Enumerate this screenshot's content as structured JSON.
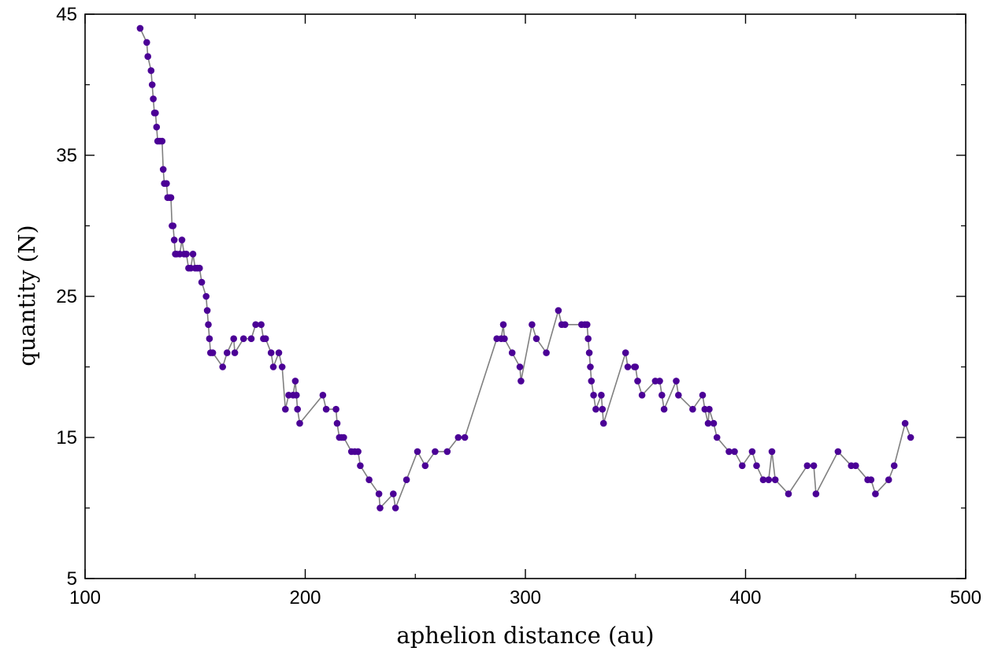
{
  "chart_data": {
    "type": "line",
    "title": "",
    "xlabel": "aphelion distance (au)",
    "ylabel": "quantity (N)",
    "xlim": [
      100,
      500
    ],
    "ylim": [
      5,
      45
    ],
    "xticks": [
      100,
      200,
      300,
      400,
      500
    ],
    "yticks": [
      5,
      15,
      25,
      35,
      45
    ],
    "grid": false,
    "legend": "none",
    "colors": {
      "line": "#808080",
      "marker": "#4b0096"
    },
    "x": [
      125,
      128,
      128.5,
      130,
      130.5,
      131,
      131.5,
      132,
      132.5,
      133,
      134,
      135,
      135.5,
      136,
      137,
      137.5,
      138.5,
      139,
      139.5,
      140,
      140.5,
      141,
      141.5,
      143,
      144,
      145,
      146,
      147,
      148,
      149,
      150,
      151,
      152,
      153,
      155,
      155.5,
      156,
      156.5,
      157,
      158,
      162.5,
      164.5,
      167.5,
      168,
      172,
      175.5,
      177.5,
      180,
      181,
      182,
      184.5,
      185.5,
      188,
      189.5,
      191,
      192.5,
      194.5,
      195.5,
      196,
      196.5,
      197.5,
      208,
      209.5,
      214,
      214.5,
      215.5,
      216.5,
      217.5,
      221,
      222.5,
      224,
      225,
      229,
      233.5,
      234,
      240,
      241,
      246,
      251,
      254.5,
      259,
      264.5,
      269.5,
      272.5,
      287,
      289,
      290,
      290.5,
      294,
      297.5,
      298,
      303,
      305,
      309.5,
      315,
      316.5,
      318,
      325.5,
      327,
      328,
      328.5,
      329,
      329.5,
      330,
      331,
      332,
      334.5,
      335,
      335.5,
      345.5,
      346.5,
      349.5,
      350,
      351,
      353,
      359,
      361,
      362,
      363,
      368.5,
      369.5,
      376,
      380.5,
      381.5,
      383,
      383.5,
      385.5,
      387,
      392.5,
      395,
      398.5,
      403,
      405,
      408,
      410.5,
      412,
      413.5,
      419.5,
      428,
      431,
      432,
      442,
      448,
      450,
      455.5,
      457,
      459,
      465,
      467.5,
      472.5,
      475
    ],
    "y": [
      44,
      43,
      42,
      41,
      40,
      39,
      38,
      38,
      37,
      36,
      36,
      36,
      34,
      33,
      33,
      32,
      32,
      32,
      30,
      30,
      29,
      28,
      28,
      28,
      29,
      28,
      28,
      27,
      27,
      28,
      27,
      27,
      27,
      26,
      25,
      24,
      23,
      22,
      21,
      21,
      20,
      21,
      22,
      21,
      22,
      22,
      23,
      23,
      22,
      22,
      21,
      20,
      21,
      20,
      17,
      18,
      18,
      19,
      18,
      17,
      16,
      18,
      17,
      17,
      16,
      15,
      15,
      15,
      14,
      14,
      14,
      13,
      12,
      11,
      10,
      11,
      10,
      12,
      14,
      13,
      14,
      14,
      15,
      15,
      22,
      22,
      23,
      22,
      21,
      20,
      19,
      23,
      22,
      21,
      24,
      23,
      23,
      23,
      23,
      23,
      22,
      21,
      20,
      19,
      18,
      17,
      18,
      17,
      16,
      21,
      20,
      20,
      20,
      19,
      18,
      19,
      19,
      18,
      17,
      19,
      18,
      17,
      18,
      17,
      16,
      17,
      16,
      15,
      14,
      14,
      13,
      14,
      13,
      12,
      12,
      14,
      12,
      11,
      13,
      13,
      11,
      14,
      13,
      13,
      12,
      12,
      11,
      12,
      13,
      16,
      15
    ]
  }
}
